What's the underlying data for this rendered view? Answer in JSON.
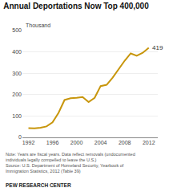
{
  "chart_data": {
    "type": "line",
    "title": "Annual Deportations Now Top 400,000",
    "y_label": "Thousand",
    "x": [
      1992,
      1993,
      1994,
      1995,
      1996,
      1997,
      1998,
      1999,
      2000,
      2001,
      2002,
      2003,
      2004,
      2005,
      2006,
      2007,
      2008,
      2009,
      2010,
      2011,
      2012
    ],
    "values": [
      43,
      42,
      45,
      51,
      70,
      115,
      175,
      183,
      185,
      189,
      165,
      185,
      240,
      246,
      280,
      319,
      359,
      393,
      382,
      396,
      419
    ],
    "color": "#C8960C",
    "xlim": [
      1991,
      2013.5
    ],
    "xticks": [
      1992,
      1996,
      2000,
      2004,
      2008,
      2012
    ],
    "ylim": [
      0,
      500
    ],
    "yticks": [
      0,
      100,
      200,
      300,
      400,
      500
    ],
    "grid": true,
    "annotations": [
      {
        "text": "419",
        "x": 2012,
        "y": 419
      }
    ],
    "notes": [
      "Note: Years are fiscal years. Data reflect removals (undocumented",
      "individuals legally compelled to leave the U.S.)",
      "Source: U.S. Department of Homeland Security, Yearbook of",
      "Immigration Statistics, 2012 (Table 39)"
    ],
    "footer": "PEW RESEARCH CENTER"
  }
}
